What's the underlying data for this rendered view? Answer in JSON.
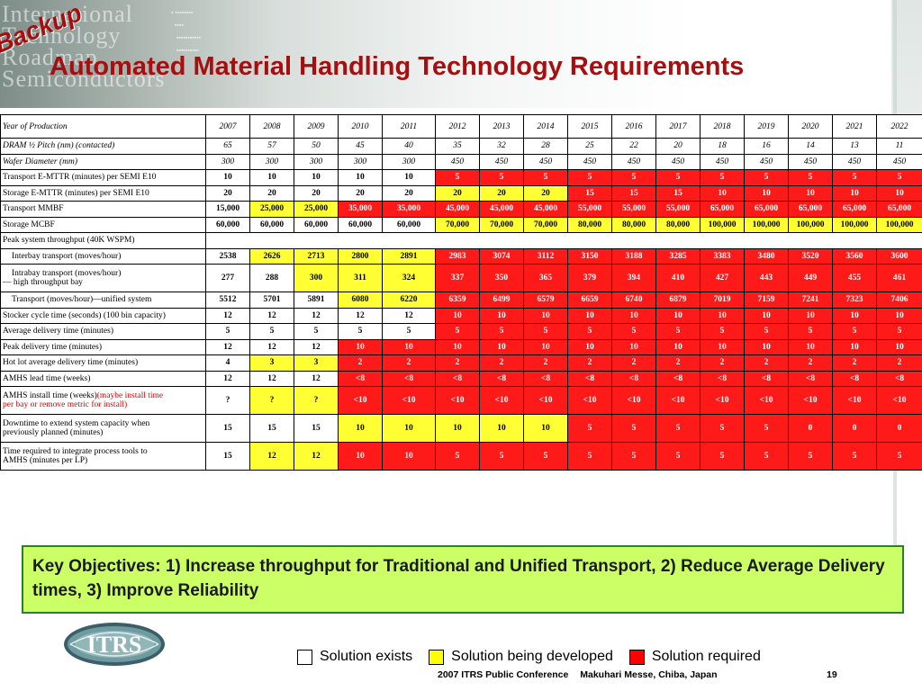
{
  "header": {
    "backup_label": "Backup",
    "title": "Automated Material Handling Technology Requirements",
    "banner_lines": [
      "International",
      "Technology",
      "Roadmap",
      "Semiconductors"
    ]
  },
  "table": {
    "header_label": "Year of Production",
    "years": [
      "2007",
      "2008",
      "2009",
      "2010",
      "2011",
      "2012",
      "2013",
      "2014",
      "2015",
      "2016",
      "2017",
      "2018",
      "2019",
      "2020",
      "2021",
      "2022"
    ],
    "rows": [
      {
        "label": "DRAM ½ Pitch (nm) (contacted)",
        "style": "ital",
        "values": [
          "65",
          "57",
          "50",
          "45",
          "40",
          "35",
          "32",
          "28",
          "25",
          "22",
          "20",
          "18",
          "16",
          "14",
          "13",
          "11"
        ],
        "colors": "wwwwwwwwwwwwwwww"
      },
      {
        "label": "Wafer Diameter (mm)",
        "style": "ital",
        "values": [
          "300",
          "300",
          "300",
          "300",
          "300",
          "450",
          "450",
          "450",
          "450",
          "450",
          "450",
          "450",
          "450",
          "450",
          "450",
          "450"
        ],
        "colors": "wwwwwwwwwwwwwwww"
      },
      {
        "label": "Transport E-MTTR (minutes) per SEMI E10",
        "values": [
          "10",
          "10",
          "10",
          "10",
          "10",
          "5",
          "5",
          "5",
          "5",
          "5",
          "5",
          "5",
          "5",
          "5",
          "5",
          "5"
        ],
        "colors": "wwwwwrrrrrrrrrrr"
      },
      {
        "label": "Storage E-MTTR (minutes) per SEMI E10",
        "values": [
          "20",
          "20",
          "20",
          "20",
          "20",
          "20",
          "20",
          "20",
          "15",
          "15",
          "15",
          "10",
          "10",
          "10",
          "10",
          "10"
        ],
        "colors": "wwwwwyyyrrrrrrrr"
      },
      {
        "label": "Transport MMBF",
        "values": [
          "15,000",
          "25,000",
          "25,000",
          "35,000",
          "35,000",
          "45,000",
          "45,000",
          "45,000",
          "55,000",
          "55,000",
          "55,000",
          "65,000",
          "65,000",
          "65,000",
          "65,000",
          "65,000"
        ],
        "colors": "wyyrrrrrrrrrrrrr"
      },
      {
        "label": "Storage MCBF",
        "values": [
          "60,000",
          "60,000",
          "60,000",
          "60,000",
          "60,000",
          "70,000",
          "70,000",
          "70,000",
          "80,000",
          "80,000",
          "80,000",
          "100,000",
          "100,000",
          "100,000",
          "100,000",
          "100,000"
        ],
        "colors": "wwwwwyyyyyyyyyyy"
      },
      {
        "label": "Peak system throughput (40K WSPM)",
        "span": true
      },
      {
        "label": "Interbay transport (moves/hour)",
        "indent": true,
        "values": [
          "2538",
          "2626",
          "2713",
          "2800",
          "2891",
          "2983",
          "3074",
          "3112",
          "3150",
          "3188",
          "3285",
          "3383",
          "3480",
          "3520",
          "3560",
          "3600"
        ],
        "colors": "wyyyyrrrrrrrrrrr"
      },
      {
        "label": "Intrabay transport (moves/hour)",
        "label2": "— high throughput bay",
        "tall": true,
        "values": [
          "277",
          "288",
          "300",
          "311",
          "324",
          "337",
          "350",
          "365",
          "379",
          "394",
          "410",
          "427",
          "443",
          "449",
          "455",
          "461"
        ],
        "colors": "wwyyyrrrrrrrrrrr"
      },
      {
        "label": "Transport (moves/hour)—unified system",
        "indent": true,
        "values": [
          "5512",
          "5701",
          "5891",
          "6080",
          "6220",
          "6359",
          "6499",
          "6579",
          "6659",
          "6740",
          "6879",
          "7019",
          "7159",
          "7241",
          "7323",
          "7406"
        ],
        "colors": "wwwyyrrrrrrrrrrr"
      },
      {
        "label": "Stocker cycle time (seconds) (100 bin capacity)",
        "values": [
          "12",
          "12",
          "12",
          "12",
          "12",
          "10",
          "10",
          "10",
          "10",
          "10",
          "10",
          "10",
          "10",
          "10",
          "10",
          "10"
        ],
        "colors": "wwwwwrrrrrrrrrrr"
      },
      {
        "label": "Average delivery time (minutes)",
        "values": [
          "5",
          "5",
          "5",
          "5",
          "5",
          "5",
          "5",
          "5",
          "5",
          "5",
          "5",
          "5",
          "5",
          "5",
          "5",
          "5"
        ],
        "colors": "wwwwwrrrrrrrrrrr"
      },
      {
        "label": "Peak delivery time (minutes)",
        "values": [
          "12",
          "12",
          "12",
          "10",
          "10",
          "10",
          "10",
          "10",
          "10",
          "10",
          "10",
          "10",
          "10",
          "10",
          "10",
          "10"
        ],
        "colors": "wwwrrrrrrrrrrrrr"
      },
      {
        "label": "Hot lot average delivery time (minutes)",
        "values": [
          "4",
          "3",
          "3",
          "2",
          "2",
          "2",
          "2",
          "2",
          "2",
          "2",
          "2",
          "2",
          "2",
          "2",
          "2",
          "2"
        ],
        "colors": "wyyrrrrrrrrrrrrr"
      },
      {
        "label": "AMHS lead time (weeks)",
        "values": [
          "12",
          "12",
          "12",
          "<8",
          "<8",
          "<8",
          "<8",
          "<8",
          "<8",
          "<8",
          "<8",
          "<8",
          "<8",
          "<8",
          "<8",
          "<8"
        ],
        "colors": "wwwrrrrrrrrrrrrr"
      },
      {
        "label": "AMHS install time (weeks)",
        "label_red": "(maybe install time",
        "label2_red": "per bay or remove metric for install)",
        "tall": true,
        "values": [
          "?",
          "?",
          "?",
          "<10",
          "<10",
          "<10",
          "<10",
          "<10",
          "<10",
          "<10",
          "<10",
          "<10",
          "<10",
          "<10",
          "<10",
          "<10"
        ],
        "colors": "wyyrrrrrrrrrrrrr"
      },
      {
        "label": "Downtime to extend system capacity when",
        "label2": "previously planned (minutes)",
        "tall": true,
        "values": [
          "15",
          "15",
          "15",
          "10",
          "10",
          "10",
          "10",
          "10",
          "5",
          "5",
          "5",
          "5",
          "5",
          "0",
          "0",
          "0"
        ],
        "colors": "wwwyyyyyrrrrrrrr"
      },
      {
        "label": "Time required to integrate process tools to",
        "label2": "AMHS (minutes per LP)",
        "tall": true,
        "values": [
          "15",
          "12",
          "12",
          "10",
          "10",
          "5",
          "5",
          "5",
          "5",
          "5",
          "5",
          "5",
          "5",
          "5",
          "5",
          "5"
        ],
        "colors": "wyyrrrrrrrrrrrrr"
      }
    ]
  },
  "key_objectives": "Key Objectives: 1) Increase throughput for Traditional and Unified Transport, 2) Reduce Average Delivery times, 3) Improve Reliability",
  "logo_text": "ITRS",
  "legend": [
    {
      "label": "Solution exists",
      "color": "#ffffff"
    },
    {
      "label": "Solution being developed",
      "color": "#ffff00"
    },
    {
      "label": "Solution required",
      "color": "#ff0000"
    }
  ],
  "footer": {
    "conference": "2007 ITRS Public Conference",
    "location": "Makuhari Messe, Chiba, Japan",
    "page": "19"
  }
}
